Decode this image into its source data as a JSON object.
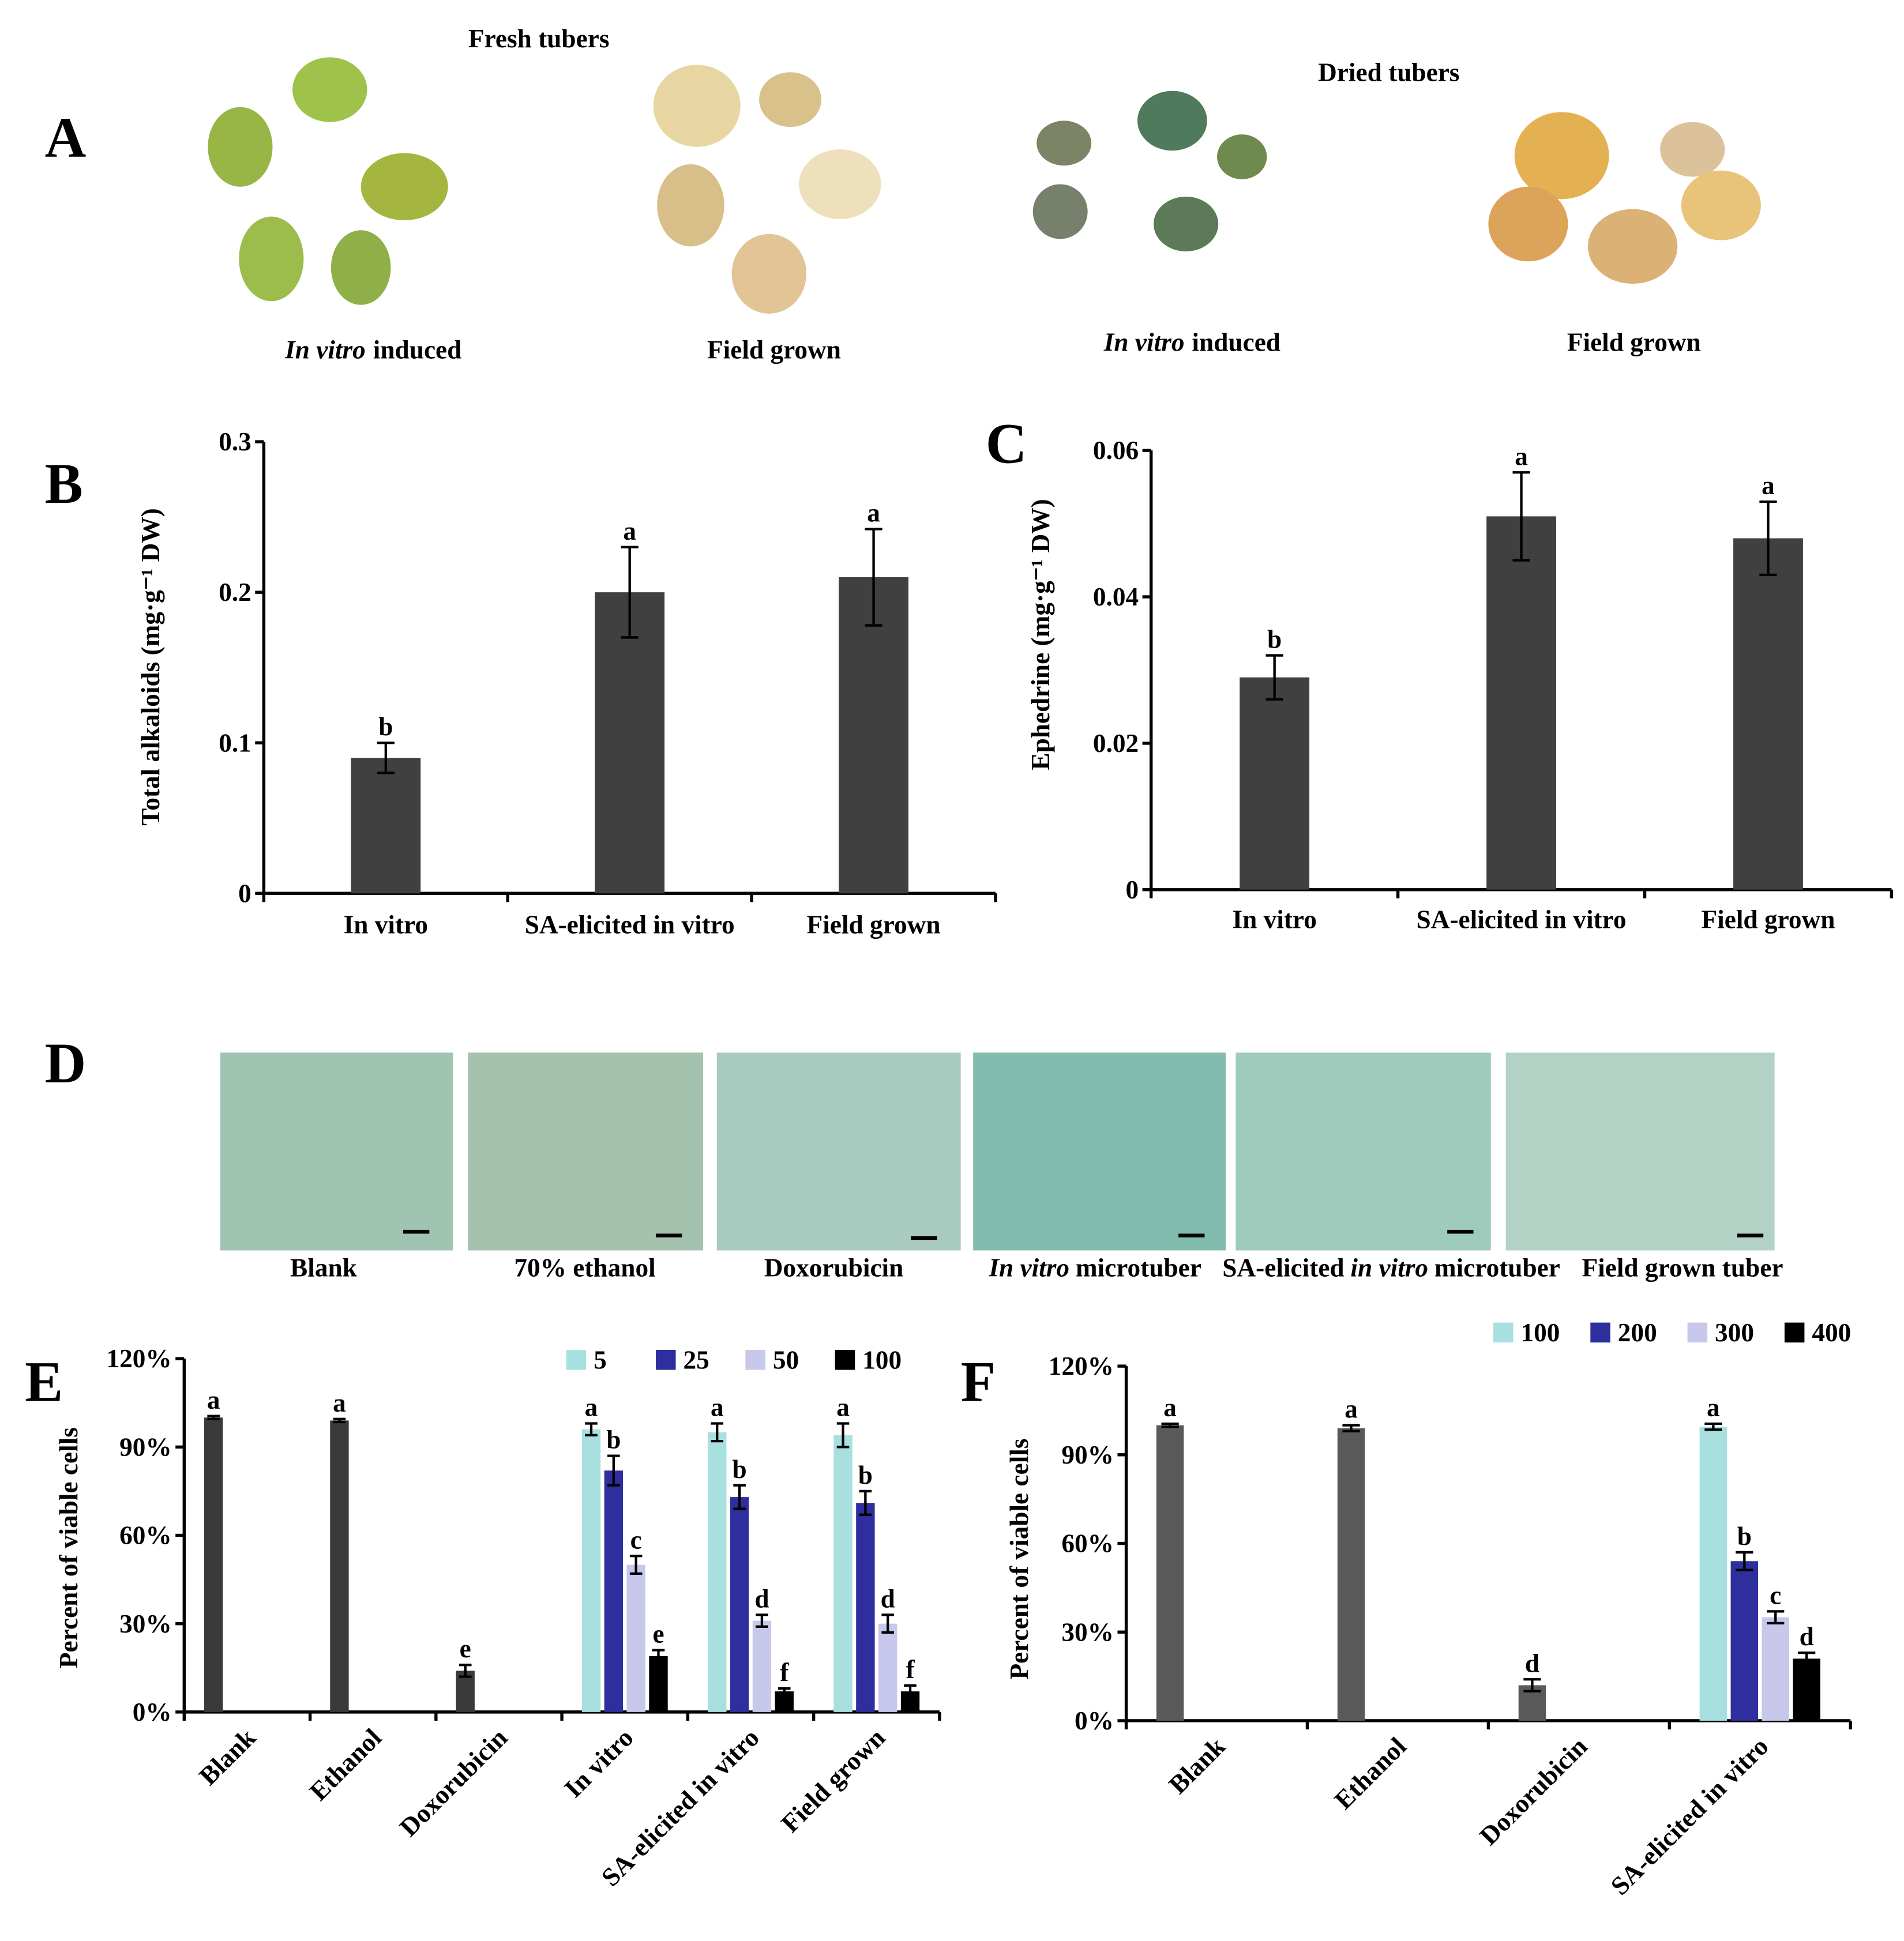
{
  "panel_a": {
    "panel": "A",
    "fresh_title": "Fresh tubers",
    "dried_title": "Dried tubers",
    "labels": [
      [
        "In vitro",
        "induced"
      ],
      [
        "Field grown"
      ],
      [
        "In vitro",
        "induced"
      ],
      [
        "Field grown"
      ]
    ]
  },
  "chart_data": [
    {
      "type": "bar",
      "panel": "B",
      "ylabel": "Total alkaloids (mg·g⁻¹ DW)",
      "categories": [
        "In vitro",
        "SA-elicited in vitro",
        "Field grown"
      ],
      "series": [
        {
          "color": "#404040",
          "values": [
            0.09,
            0.2,
            0.21
          ],
          "errors": [
            0.01,
            0.03,
            0.032
          ],
          "labels": [
            "b",
            "a",
            "a"
          ]
        }
      ],
      "ylim": [
        0,
        0.3
      ],
      "yticks": [
        0,
        0.1,
        0.2,
        0.3
      ]
    },
    {
      "type": "bar",
      "panel": "C",
      "ylabel": "Ephedrine (mg·g⁻¹ DW)",
      "categories": [
        "In vitro",
        "SA-elicited in vitro",
        "Field grown"
      ],
      "series": [
        {
          "color": "#404040",
          "values": [
            0.029,
            0.051,
            0.048
          ],
          "errors": [
            0.003,
            0.006,
            0.005
          ],
          "labels": [
            "b",
            "a",
            "a"
          ]
        }
      ],
      "ylim": [
        0,
        0.06
      ],
      "yticks": [
        0,
        0.02,
        0.04,
        0.06
      ]
    },
    {
      "type": "bar",
      "panel": "E",
      "ylabel": "Percent of viable cells",
      "categories": [
        "Blank",
        "Ethanol",
        "Doxorubicin",
        "In vitro",
        "SA-elicited in vitro",
        "Field grown"
      ],
      "series": [
        {
          "color": "#3a3a3a",
          "values": [
            100,
            99,
            14,
            null,
            null,
            null
          ],
          "errors": [
            0.5,
            0.5,
            2,
            null,
            null,
            null
          ],
          "labels": [
            "a",
            "a",
            "e",
            null,
            null,
            null
          ]
        },
        {
          "name": "5",
          "color": "#a8e0e0",
          "values": [
            null,
            null,
            null,
            96,
            95,
            94
          ],
          "errors": [
            null,
            null,
            null,
            2,
            3,
            4
          ],
          "labels": [
            null,
            null,
            null,
            "a",
            "a",
            "a"
          ]
        },
        {
          "name": "25",
          "color": "#2e2e9e",
          "values": [
            null,
            null,
            null,
            82,
            73,
            71
          ],
          "errors": [
            null,
            null,
            null,
            5,
            4,
            4
          ],
          "labels": [
            null,
            null,
            null,
            "b",
            "b",
            "b"
          ]
        },
        {
          "name": "50",
          "color": "#c8c8ec",
          "values": [
            null,
            null,
            null,
            50,
            31,
            30
          ],
          "errors": [
            null,
            null,
            null,
            3,
            2,
            3
          ],
          "labels": [
            null,
            null,
            null,
            "c",
            "d",
            "d"
          ]
        },
        {
          "name": "100",
          "color": "#000000",
          "values": [
            null,
            null,
            null,
            19,
            7,
            7
          ],
          "errors": [
            null,
            null,
            null,
            2,
            1,
            2
          ],
          "labels": [
            null,
            null,
            null,
            "e",
            "f",
            "f"
          ]
        }
      ],
      "ylim": [
        0,
        120
      ],
      "yticks": [
        {
          "value": 0,
          "label": "0%"
        },
        {
          "value": 30,
          "label": "30%"
        },
        {
          "value": 60,
          "label": "60%"
        },
        {
          "value": 90,
          "label": "90%"
        },
        {
          "value": 120,
          "label": "120%"
        }
      ]
    },
    {
      "type": "bar",
      "panel": "F",
      "ylabel": "Percent of viable cells",
      "categories": [
        "Blank",
        "Ethanol",
        "Doxorubicin",
        "SA-elicited in vitro"
      ],
      "series": [
        {
          "color": "#595959",
          "values": [
            100,
            99,
            12,
            null
          ],
          "errors": [
            0.5,
            1,
            2,
            null
          ],
          "labels": [
            "a",
            "a",
            "d",
            null
          ]
        },
        {
          "name": "100",
          "color": "#a8e0e0",
          "values": [
            null,
            null,
            null,
            99.5
          ],
          "errors": [
            null,
            null,
            null,
            1
          ],
          "labels": [
            null,
            null,
            null,
            "a"
          ]
        },
        {
          "name": "200",
          "color": "#2e2e9e",
          "values": [
            null,
            null,
            null,
            54
          ],
          "errors": [
            null,
            null,
            null,
            3
          ],
          "labels": [
            null,
            null,
            null,
            "b"
          ]
        },
        {
          "name": "300",
          "color": "#c8c8ec",
          "values": [
            null,
            null,
            null,
            35
          ],
          "errors": [
            null,
            null,
            null,
            2
          ],
          "labels": [
            null,
            null,
            null,
            "c"
          ]
        },
        {
          "name": "400",
          "color": "#000000",
          "values": [
            null,
            null,
            null,
            21
          ],
          "errors": [
            null,
            null,
            null,
            2
          ],
          "labels": [
            null,
            null,
            null,
            "d"
          ]
        }
      ],
      "ylim": [
        0,
        120
      ],
      "yticks": [
        {
          "value": 0,
          "label": "0%"
        },
        {
          "value": 30,
          "label": "30%"
        },
        {
          "value": 60,
          "label": "60%"
        },
        {
          "value": 90,
          "label": "90%"
        },
        {
          "value": 120,
          "label": "120%"
        }
      ]
    }
  ],
  "panel_d": {
    "panel": "D",
    "labels": [
      [
        "Blank"
      ],
      [
        "70% ethanol"
      ],
      [
        "Doxorubicin"
      ],
      [
        "In vitro",
        "microtuber"
      ],
      [
        "SA-elicited",
        "in vitro",
        "microtuber"
      ],
      [
        "Field grown tuber"
      ]
    ]
  }
}
